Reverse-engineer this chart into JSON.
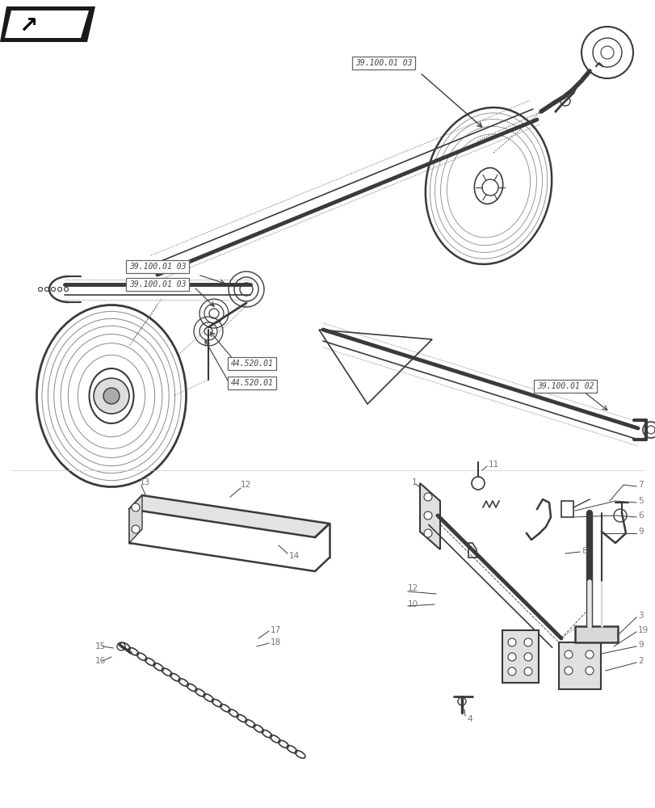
{
  "bg_color": "#ffffff",
  "fig_width": 8.12,
  "fig_height": 10.0,
  "dpi": 100,
  "lc": "#3a3a3a",
  "dc": "#5a5a5a",
  "bc": "#666666",
  "lc_light": "#888888"
}
